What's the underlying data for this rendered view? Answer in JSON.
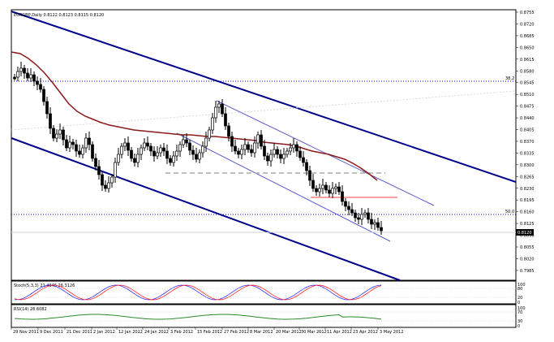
{
  "chart_title": "EURGBP,Daily  0.8122 0.8123 0.8115 0.8120",
  "price_axis": [
    "0.8755",
    "0.8720",
    "0.8685",
    "0.8650",
    "0.8615",
    "0.8580",
    "0.8545",
    "0.8510",
    "0.8475",
    "0.8440",
    "0.8405",
    "0.8370",
    "0.8335",
    "0.8300",
    "0.8265",
    "0.8230",
    "0.8195",
    "0.8160",
    "0.8125",
    "0.8090",
    "0.8055",
    "0.8020",
    "0.7985"
  ],
  "current_price_label": "0.8120",
  "fib_labels": {
    "level_38": "38.2",
    "level_50": "50.0"
  },
  "stoch": {
    "title": "Stoch(5,3,3) 21.4945 26.3126",
    "axis": [
      "100",
      "80",
      "20",
      "0"
    ]
  },
  "rsi": {
    "title": "RSI(14) 28.6082",
    "axis": [
      "100",
      "70",
      "30",
      "0"
    ]
  },
  "date_axis": [
    "29 Nov 2011",
    "9 Dec 2011",
    "21 Dec 2011",
    "2 Jan 2012",
    "12 Jan 2012",
    "24 Jan 2012",
    "3 Feb 2012",
    "15 Feb 2012",
    "27 Feb 2012",
    "8 Mar 2012",
    "20 Mar 2012",
    "30 Mar 2012",
    "11 Apr 2012",
    "23 Apr 2012",
    "3 May 2012"
  ],
  "colors": {
    "channel": "#00008b",
    "inner_channel": "#5a5ac8",
    "ma": "#8b1a1a",
    "resistance": "#ff4040",
    "fib": "#0000cc",
    "stoch_main": "#3030ff",
    "stoch_signal": "#ff2020",
    "rsi": "#2a8a2a"
  }
}
